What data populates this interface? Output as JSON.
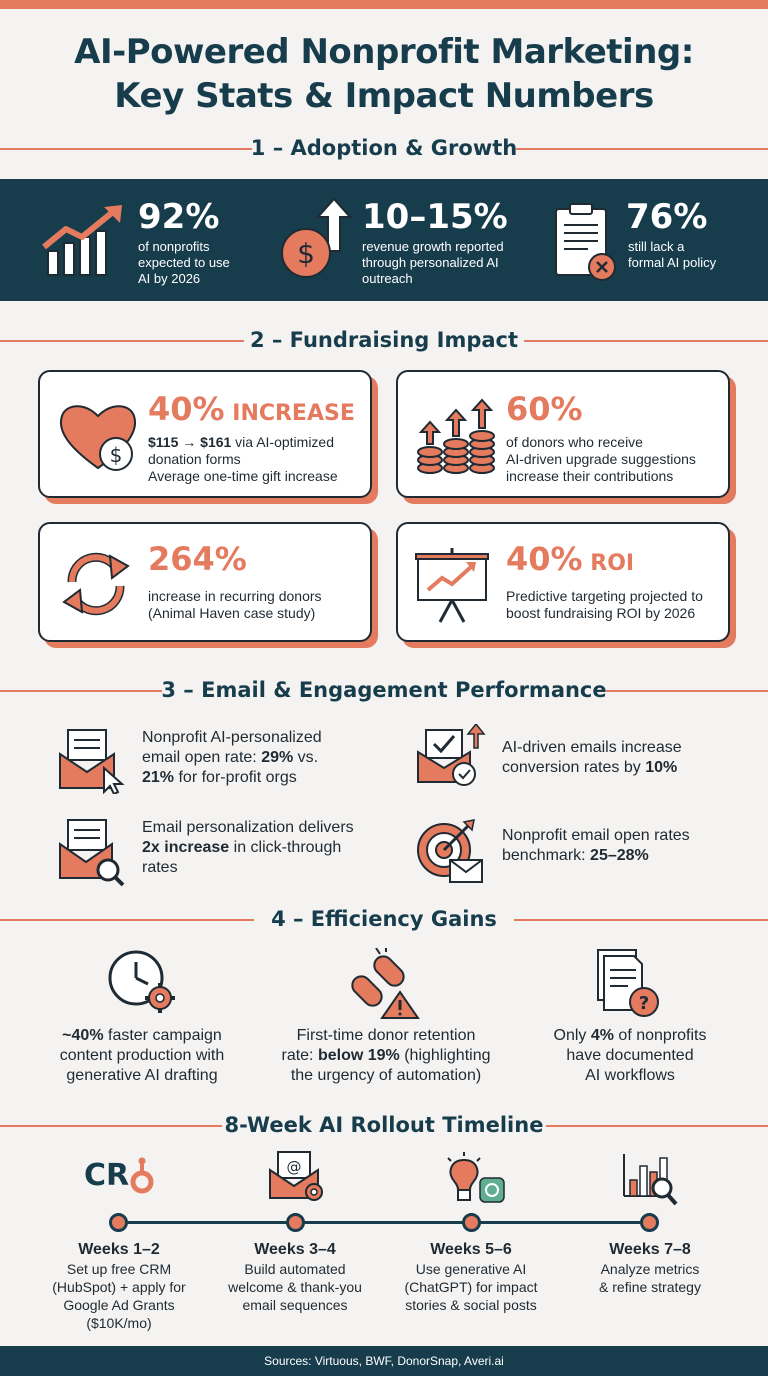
{
  "title": {
    "line1": "AI-Powered Nonprofit Marketing:",
    "line2": "Key Stats & Impact Numbers"
  },
  "sections": {
    "s1": "1 – Adoption & Growth",
    "s2": "2 – Fundraising Impact",
    "s3": "3 – Email & Engagement Performance",
    "s4": "4 – Efficiency Gains",
    "s5": "8-Week AI Rollout Timeline"
  },
  "adoption": [
    {
      "stat": "92%",
      "l1": "of nonprofits",
      "l2": "expected to use",
      "l3": "AI by 2026",
      "icon": "bar-chart-growth-icon"
    },
    {
      "stat": "10–15%",
      "l1": "revenue growth reported",
      "l2": "through personalized AI",
      "l3": "outreach",
      "icon": "dollar-up-arrow-icon"
    },
    {
      "stat": "76%",
      "l1": "still lack a",
      "l2": "formal AI policy",
      "l3": "",
      "icon": "clipboard-x-icon"
    }
  ],
  "fundraising": [
    {
      "stat": "40%",
      "suffix": " INCREASE",
      "l1a": "$115 → $161",
      "l1b": " via AI-optimized",
      "l2": "donation forms",
      "l3": "Average one-time gift increase",
      "icon": "heart-dollar-icon"
    },
    {
      "stat": "60%",
      "suffix": "",
      "l1a": "",
      "l1b": "of donors who receive",
      "l2": "AI-driven upgrade suggestions",
      "l3": "increase their contributions",
      "icon": "coins-up-arrows-icon"
    },
    {
      "stat": "264%",
      "suffix": "",
      "l1a": "",
      "l1b": "increase in recurring donors",
      "l2": "(Animal Haven case study)",
      "l3": "",
      "icon": "recurring-arrows-icon"
    },
    {
      "stat": "40%",
      "suffix": " ROI",
      "l1a": "",
      "l1b": "Predictive targeting projected to",
      "l2": "boost fundraising ROI by 2026",
      "l3": "",
      "icon": "presentation-chart-icon"
    }
  ],
  "email": [
    {
      "l1": "Nonprofit AI-personalized",
      "l2a": "email open rate: ",
      "l2b": "29%",
      "l2c": " vs.",
      "l3a": "21%",
      "l3b": " for for-profit orgs",
      "icon": "email-cursor-icon"
    },
    {
      "l1": "AI-driven emails increase",
      "l2a": "conversion rates by ",
      "l2b": "10%",
      "l2c": "",
      "l3a": "",
      "l3b": "",
      "icon": "email-check-icon"
    },
    {
      "l1": "Email personalization delivers",
      "l2a": "",
      "l2b": "2x increase",
      "l2c": " in click-through",
      "l3a": "",
      "l3b": "rates",
      "icon": "email-magnifier-icon"
    },
    {
      "l1": "Nonprofit email open rates",
      "l2a": "benchmark: ",
      "l2b": "25–28%",
      "l2c": "",
      "l3a": "",
      "l3b": "",
      "icon": "target-email-icon"
    }
  ],
  "efficiency": [
    {
      "l1a": "~40%",
      "l1b": " faster campaign",
      "l2a": "content production with",
      "l2b": "",
      "l3": "generative AI drafting",
      "icon": "clock-gear-icon"
    },
    {
      "l1a": "",
      "l1b": "First-time donor retention",
      "l2a": "rate: ",
      "l2b": "below 19%",
      "l2c": " (highlighting",
      "l3": "the urgency of automation)",
      "icon": "broken-chain-warning-icon"
    },
    {
      "l1a": "",
      "l1b": "Only ",
      "l1c": "4%",
      "l1d": " of nonprofits",
      "l2a": "have documented",
      "l2b": "",
      "l3": "AI workflows",
      "icon": "document-question-icon"
    }
  ],
  "timeline": [
    {
      "weeks": "Weeks 1–2",
      "l1": "Set up free CRM",
      "l2": "(HubSpot) + apply for",
      "l3": "Google Ad Grants",
      "l4": "($10K/mo)",
      "icon": "crm-logo-icon",
      "logo_text": "CR"
    },
    {
      "weeks": "Weeks 3–4",
      "l1": "Build automated",
      "l2": "welcome & thank-you",
      "l3": "email sequences",
      "l4": "",
      "icon": "email-gear-icon"
    },
    {
      "weeks": "Weeks 5–6",
      "l1": "Use generative AI",
      "l2": "(ChatGPT) for impact",
      "l3": "stories & social posts",
      "l4": "",
      "icon": "lightbulb-ai-icon"
    },
    {
      "weeks": "Weeks 7–8",
      "l1": "Analyze metrics",
      "l2": "& refine strategy",
      "l3": "",
      "l4": "",
      "icon": "chart-magnifier-icon"
    }
  ],
  "footer": "Sources: Virtuous, BWF, DonorSnap, Averi.ai",
  "colors": {
    "navy": "#173d4d",
    "coral": "#e47a5e",
    "background": "#f4f3f1"
  }
}
